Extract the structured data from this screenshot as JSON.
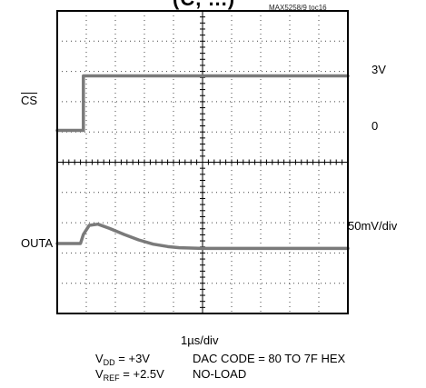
{
  "header": {
    "title_fragment": "(C, ...)",
    "figure_id": "MAX5258/9 toc16"
  },
  "labels": {
    "cs": "CS",
    "outa": "OUTA",
    "level_high": "3V",
    "level_zero": "0",
    "scale": "50mV/div",
    "timebase": "1µs/div"
  },
  "conditions": {
    "vdd_main": "V",
    "vdd_sub": "DD",
    "vdd_value": " = +3V",
    "vref_main": "V",
    "vref_sub": "REF",
    "vref_value": " = +2.5V",
    "dac_code": "DAC CODE = 80 TO 7F HEX",
    "load": "NO-LOAD"
  },
  "chart_data": {
    "type": "line",
    "title": "",
    "xlabel": "1µs/div",
    "xlim": [
      0,
      10
    ],
    "grid": true,
    "series": [
      {
        "name": "CS",
        "unit": "V",
        "x": [
          0,
          0.9,
          0.9,
          1.0,
          5.0,
          10
        ],
        "values": [
          0,
          0,
          3,
          3,
          3,
          3
        ]
      },
      {
        "name": "OUTA",
        "unit": "mV",
        "x": [
          0,
          0.8,
          0.9,
          1.1,
          1.4,
          1.8,
          2.3,
          2.8,
          3.3,
          3.8,
          4.2,
          5.0,
          6.0,
          7.0,
          8.0,
          10
        ],
        "values": [
          0,
          0,
          15,
          30,
          32,
          25,
          15,
          6,
          -1,
          -5,
          -7,
          -8,
          -8,
          -8,
          -8,
          -8
        ]
      }
    ]
  }
}
